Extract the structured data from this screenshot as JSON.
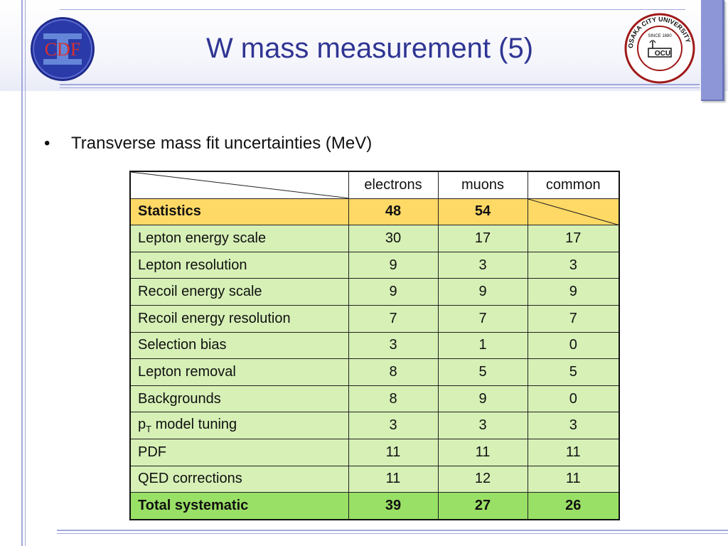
{
  "slide": {
    "title": "W mass measurement (5)",
    "bullet": "Transverse mass fit uncertainties (MeV)"
  },
  "logos": {
    "left": {
      "text": "CDF",
      "icon": "cdf-logo"
    },
    "right": {
      "top_text": "SINCE 1880",
      "ring_text": "OSAKA CITY UNIVERSITY",
      "center_text": "OCU",
      "icon": "osaka-city-university-seal"
    }
  },
  "table": {
    "headers": [
      "electrons",
      "muons",
      "common"
    ],
    "statistics": {
      "label": "Statistics",
      "electrons": "48",
      "muons": "54"
    },
    "rows": [
      {
        "label": "Lepton energy scale",
        "electrons": "30",
        "muons": "17",
        "common": "17"
      },
      {
        "label": "Lepton resolution",
        "electrons": "9",
        "muons": "3",
        "common": "3"
      },
      {
        "label": "Recoil energy scale",
        "electrons": "9",
        "muons": "9",
        "common": "9"
      },
      {
        "label": "Recoil energy resolution",
        "electrons": "7",
        "muons": "7",
        "common": "7"
      },
      {
        "label": "Selection bias",
        "electrons": "3",
        "muons": "1",
        "common": "0"
      },
      {
        "label": "Lepton removal",
        "electrons": "8",
        "muons": "5",
        "common": "5"
      },
      {
        "label": "Backgrounds",
        "electrons": "8",
        "muons": "9",
        "common": "0"
      },
      {
        "label_main": "p",
        "label_sub": "T",
        "label_rest": " model tuning",
        "electrons": "3",
        "muons": "3",
        "common": "3"
      },
      {
        "label": "PDF",
        "electrons": "11",
        "muons": "11",
        "common": "11"
      },
      {
        "label": "QED corrections",
        "electrons": "11",
        "muons": "12",
        "common": "11"
      }
    ],
    "total": {
      "label": "Total systematic",
      "electrons": "39",
      "muons": "27",
      "common": "26"
    }
  },
  "colors": {
    "title": "#2f3593",
    "statistics_row": "#ffd966",
    "body_rows": "#d6f0b6",
    "total_row": "#99e066",
    "accent_lines": "#a0a8dc"
  }
}
